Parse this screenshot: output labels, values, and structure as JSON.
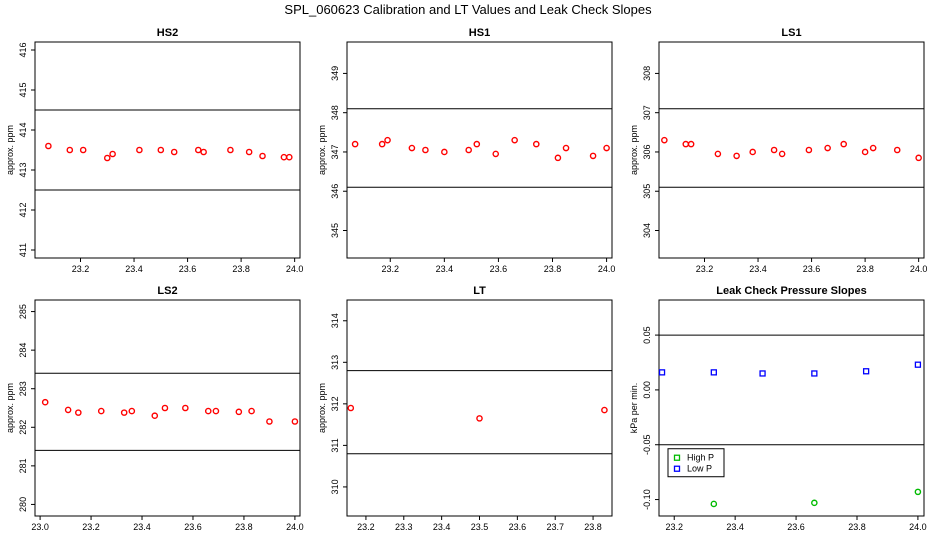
{
  "title": "SPL_060623  Calibration and LT Values and Leak Check Slopes",
  "chart_data": [
    {
      "type": "scatter",
      "title": "HS2",
      "xlabel": "",
      "ylabel": "approx. ppm",
      "xlim": [
        23.03,
        24.02
      ],
      "ylim": [
        410.8,
        416.2
      ],
      "xticks": [
        23.2,
        23.4,
        23.6,
        23.8,
        24.0
      ],
      "xtick_labels": [
        "23.2",
        "23.4",
        "23.6",
        "23.8",
        "24.0"
      ],
      "yticks": [
        411,
        412,
        413,
        414,
        415,
        416
      ],
      "ytick_labels": [
        "411",
        "412",
        "413",
        "414",
        "415",
        "416"
      ],
      "hlines": [
        412.5,
        414.5
      ],
      "series": [
        {
          "name": "values",
          "color": "#ff0000",
          "marker": "circle",
          "x": [
            23.08,
            23.16,
            23.21,
            23.3,
            23.32,
            23.42,
            23.5,
            23.55,
            23.64,
            23.66,
            23.76,
            23.83,
            23.88,
            23.96,
            23.98
          ],
          "y": [
            413.6,
            413.5,
            413.5,
            413.3,
            413.4,
            413.5,
            413.5,
            413.45,
            413.5,
            413.45,
            413.5,
            413.45,
            413.35,
            413.32,
            413.32
          ]
        }
      ]
    },
    {
      "type": "scatter",
      "title": "HS1",
      "xlabel": "",
      "ylabel": "approx. ppm",
      "xlim": [
        23.04,
        24.02
      ],
      "ylim": [
        344.3,
        349.8
      ],
      "xticks": [
        23.2,
        23.4,
        23.6,
        23.8,
        24.0
      ],
      "xtick_labels": [
        "23.2",
        "23.4",
        "23.6",
        "23.8",
        "24.0"
      ],
      "yticks": [
        345,
        346,
        347,
        348,
        349
      ],
      "ytick_labels": [
        "345",
        "346",
        "347",
        "348",
        "349"
      ],
      "hlines": [
        346.1,
        348.1
      ],
      "series": [
        {
          "name": "values",
          "color": "#ff0000",
          "marker": "circle",
          "x": [
            23.07,
            23.17,
            23.19,
            23.28,
            23.33,
            23.4,
            23.49,
            23.52,
            23.59,
            23.66,
            23.74,
            23.82,
            23.85,
            23.95,
            24.0
          ],
          "y": [
            347.2,
            347.2,
            347.3,
            347.1,
            347.05,
            347.0,
            347.05,
            347.2,
            346.95,
            347.3,
            347.2,
            346.85,
            347.1,
            346.9,
            347.1
          ]
        }
      ]
    },
    {
      "type": "scatter",
      "title": "LS1",
      "xlabel": "",
      "ylabel": "approx. ppm",
      "xlim": [
        23.03,
        24.02
      ],
      "ylim": [
        303.3,
        308.8
      ],
      "xticks": [
        23.2,
        23.4,
        23.6,
        23.8,
        24.0
      ],
      "xtick_labels": [
        "23.2",
        "23.4",
        "23.6",
        "23.8",
        "24.0"
      ],
      "yticks": [
        304,
        305,
        306,
        307,
        308
      ],
      "ytick_labels": [
        "304",
        "305",
        "306",
        "307",
        "308"
      ],
      "hlines": [
        305.1,
        307.1
      ],
      "series": [
        {
          "name": "values",
          "color": "#ff0000",
          "marker": "circle",
          "x": [
            23.05,
            23.13,
            23.15,
            23.25,
            23.32,
            23.38,
            23.46,
            23.49,
            23.59,
            23.66,
            23.72,
            23.8,
            23.83,
            23.92,
            24.0
          ],
          "y": [
            306.3,
            306.2,
            306.2,
            305.95,
            305.9,
            306.0,
            306.05,
            305.95,
            306.05,
            306.1,
            306.2,
            306.0,
            306.1,
            306.05,
            305.85
          ]
        }
      ]
    },
    {
      "type": "scatter",
      "title": "LS2",
      "xlabel": "",
      "ylabel": "approx. ppm",
      "xlim": [
        22.98,
        24.02
      ],
      "ylim": [
        279.7,
        285.3
      ],
      "xticks": [
        23.0,
        23.2,
        23.4,
        23.6,
        23.8,
        24.0
      ],
      "xtick_labels": [
        "23.0",
        "23.2",
        "23.4",
        "23.6",
        "23.8",
        "24.0"
      ],
      "yticks": [
        280,
        281,
        282,
        283,
        284,
        285
      ],
      "ytick_labels": [
        "280",
        "281",
        "282",
        "283",
        "284",
        "285"
      ],
      "hlines": [
        281.4,
        283.4
      ],
      "series": [
        {
          "name": "values",
          "color": "#ff0000",
          "marker": "circle",
          "x": [
            23.02,
            23.11,
            23.15,
            23.24,
            23.33,
            23.36,
            23.45,
            23.49,
            23.57,
            23.66,
            23.69,
            23.78,
            23.83,
            23.9,
            24.0
          ],
          "y": [
            282.65,
            282.45,
            282.38,
            282.42,
            282.38,
            282.42,
            282.3,
            282.5,
            282.5,
            282.42,
            282.42,
            282.4,
            282.42,
            282.15,
            282.15
          ]
        }
      ]
    },
    {
      "type": "scatter",
      "title": "LT",
      "xlabel": "",
      "ylabel": "approx. ppm",
      "xlim": [
        23.15,
        23.85
      ],
      "ylim": [
        309.3,
        314.5
      ],
      "xticks": [
        23.2,
        23.3,
        23.4,
        23.5,
        23.6,
        23.7,
        23.8
      ],
      "xtick_labels": [
        "23.2",
        "23.3",
        "23.4",
        "23.5",
        "23.6",
        "23.7",
        "23.8"
      ],
      "yticks": [
        310,
        311,
        312,
        313,
        314
      ],
      "ytick_labels": [
        "310",
        "311",
        "312",
        "313",
        "314"
      ],
      "hlines": [
        310.8,
        312.8
      ],
      "series": [
        {
          "name": "values",
          "color": "#ff0000",
          "marker": "circle",
          "x": [
            23.16,
            23.5,
            23.83
          ],
          "y": [
            311.9,
            311.65,
            311.85
          ]
        }
      ]
    },
    {
      "type": "scatter",
      "title": "Leak Check Pressure Slopes",
      "xlabel": "",
      "ylabel": "kPa per min.",
      "xlim": [
        23.15,
        24.02
      ],
      "ylim": [
        -0.115,
        0.082
      ],
      "xticks": [
        23.2,
        23.4,
        23.6,
        23.8,
        24.0
      ],
      "xtick_labels": [
        "23.2",
        "23.4",
        "23.6",
        "23.8",
        "24.0"
      ],
      "yticks": [
        -0.1,
        -0.05,
        0.0,
        0.05
      ],
      "ytick_labels": [
        "-0.10",
        "-0.05",
        "0.00",
        "0.05"
      ],
      "hlines": [
        -0.05,
        0.05
      ],
      "legend": {
        "placement": "bottom-left"
      },
      "series": [
        {
          "name": "High P",
          "color": "#00bb00",
          "marker": "circle",
          "x": [
            23.33,
            23.66,
            24.0
          ],
          "y": [
            -0.104,
            -0.103,
            -0.093
          ]
        },
        {
          "name": "Low P",
          "color": "#0000ff",
          "marker": "square",
          "x": [
            23.16,
            23.33,
            23.49,
            23.66,
            23.83,
            24.0
          ],
          "y": [
            0.016,
            0.016,
            0.015,
            0.015,
            0.017,
            0.023
          ]
        }
      ]
    }
  ]
}
